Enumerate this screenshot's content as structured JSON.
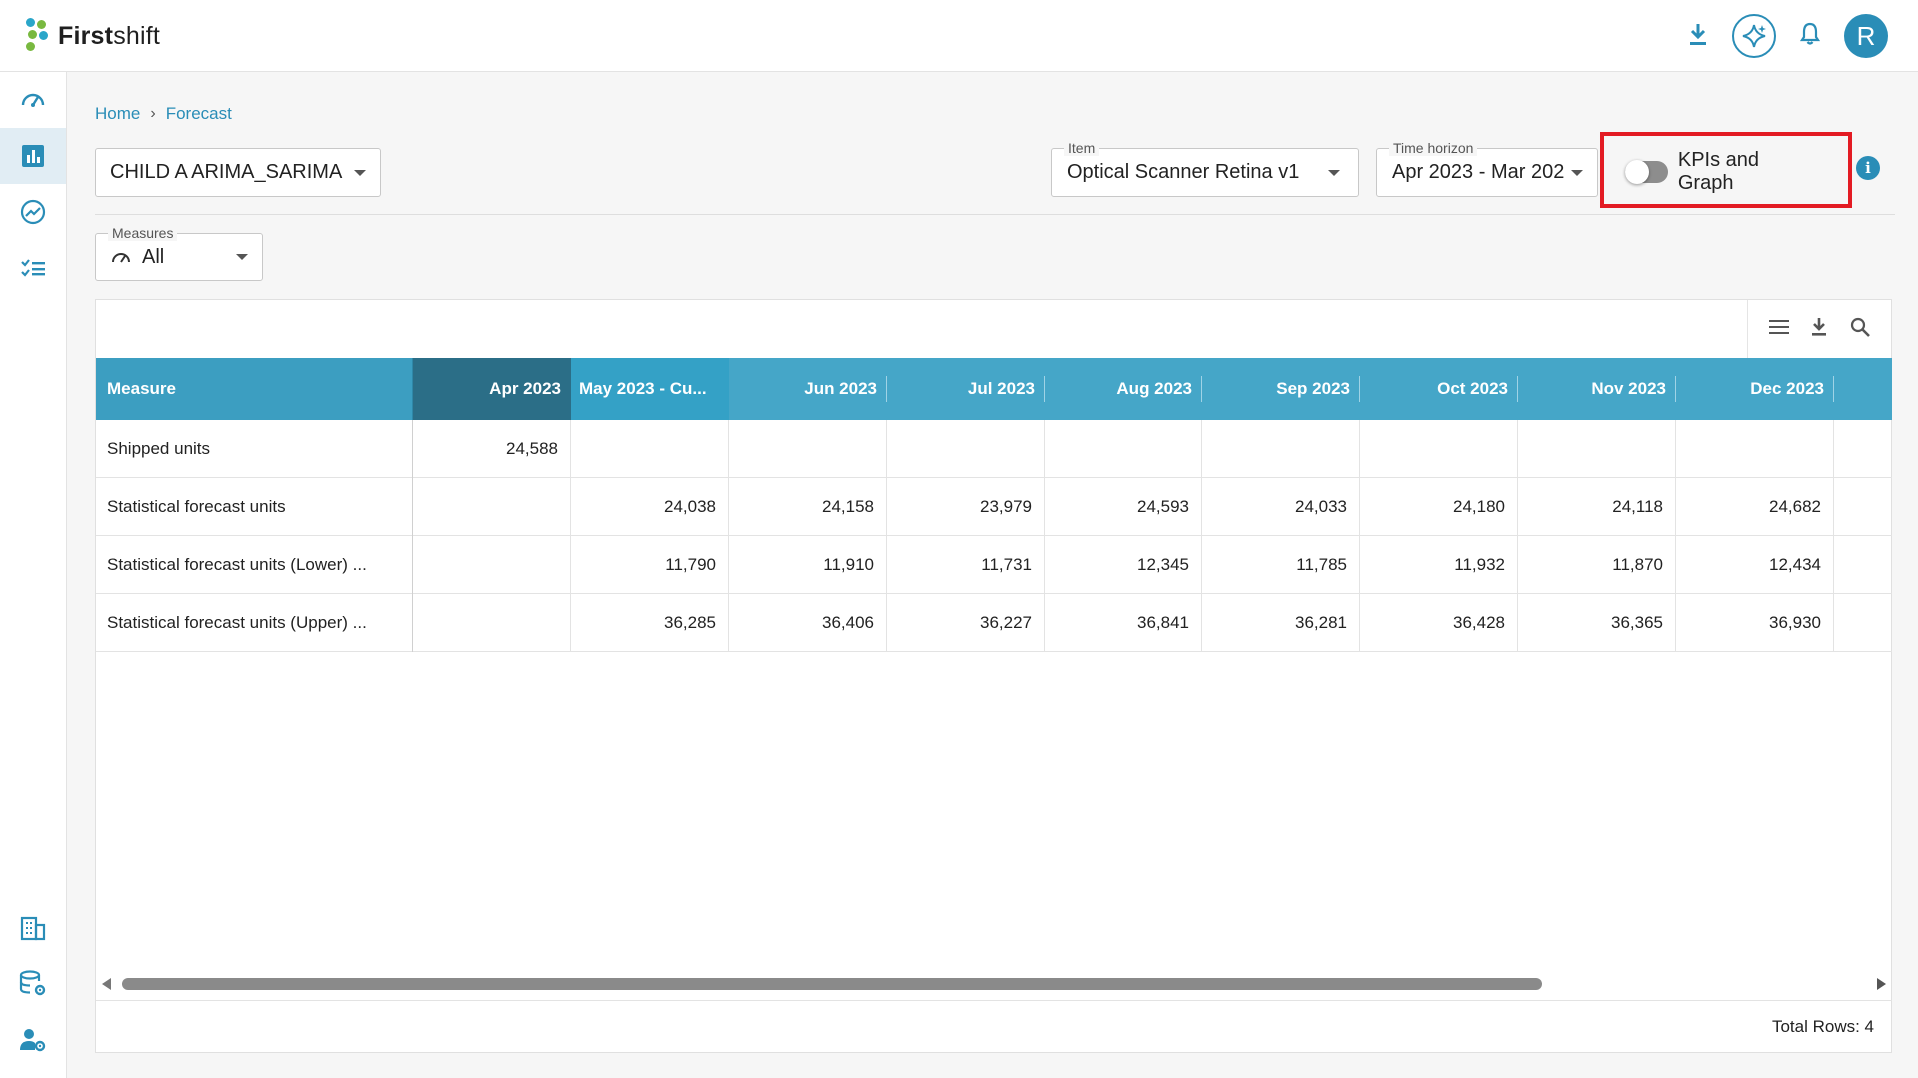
{
  "app": {
    "brand_bold": "First",
    "brand_light": "shift",
    "user_initial": "R"
  },
  "breadcrumb": {
    "home": "Home",
    "separator": "›",
    "current": "Forecast"
  },
  "filters": {
    "model_select": "CHILD A ARIMA_SARIMA",
    "item_label": "Item",
    "item_value": "Optical Scanner Retina v1",
    "time_label": "Time horizon",
    "time_value": "Apr 2023 - Mar 202",
    "measures_label": "Measures",
    "measures_value": "All",
    "kpi_toggle_label": "KPIs and Graph",
    "kpi_toggle_on": false
  },
  "grid": {
    "columns": [
      "Measure",
      "Apr 2023",
      "May 2023 - Cu...",
      "Jun 2023",
      "Jul 2023",
      "Aug 2023",
      "Sep 2023",
      "Oct 2023",
      "Nov 2023",
      "Dec 2023"
    ],
    "rows": [
      {
        "cells": [
          "Shipped units",
          "24,588",
          "",
          "",
          "",
          "",
          "",
          "",
          "",
          ""
        ]
      },
      {
        "cells": [
          "Statistical forecast units",
          "",
          "24,038",
          "24,158",
          "23,979",
          "24,593",
          "24,033",
          "24,180",
          "24,118",
          "24,682"
        ]
      },
      {
        "cells": [
          "Statistical forecast units (Lower) ...",
          "",
          "11,790",
          "11,910",
          "11,731",
          "12,345",
          "11,785",
          "11,932",
          "11,870",
          "12,434"
        ]
      },
      {
        "cells": [
          "Statistical forecast units (Upper) ...",
          "",
          "36,285",
          "36,406",
          "36,227",
          "36,841",
          "36,281",
          "36,428",
          "36,365",
          "36,930"
        ]
      }
    ],
    "total_rows": "Total Rows: 4"
  },
  "colors": {
    "accent": "#2a8db7",
    "header": "#45a6c8",
    "highlight": "#e31b23"
  }
}
